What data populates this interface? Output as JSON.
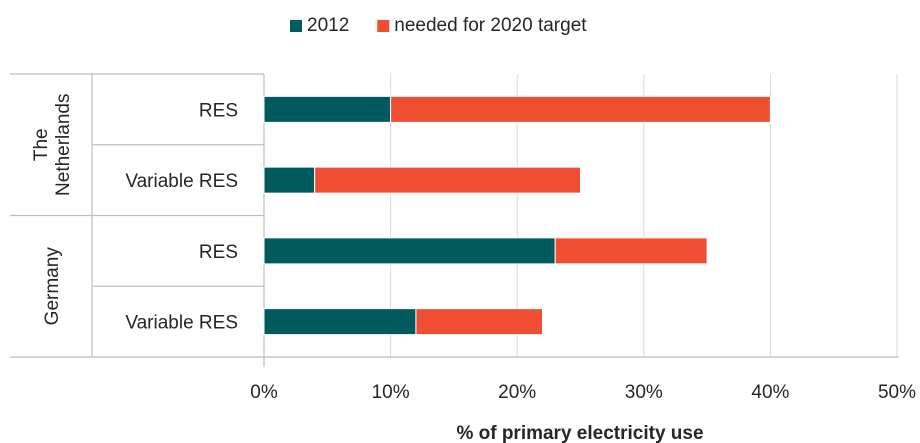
{
  "chart_data": {
    "type": "bar",
    "orientation": "horizontal",
    "stacked": true,
    "groups": [
      {
        "label": "The\nNetherlands",
        "categories": [
          "RES",
          "Variable RES"
        ]
      },
      {
        "label": "Germany",
        "categories": [
          "RES",
          "Variable RES"
        ]
      }
    ],
    "categories": [
      "RES",
      "Variable RES",
      "RES",
      "Variable RES"
    ],
    "series": [
      {
        "name": "2012",
        "color": "#005a5e",
        "values": [
          10,
          4,
          23,
          12
        ]
      },
      {
        "name": "needed for 2020 target",
        "color": "#f04e33",
        "values": [
          30,
          21,
          12,
          10
        ]
      }
    ],
    "xlabel": "% of primary electricity use",
    "xlim": [
      0,
      50
    ],
    "xticks": [
      "0%",
      "10%",
      "20%",
      "30%",
      "40%",
      "50%"
    ],
    "grid": "vertical",
    "legend_position": "top"
  }
}
